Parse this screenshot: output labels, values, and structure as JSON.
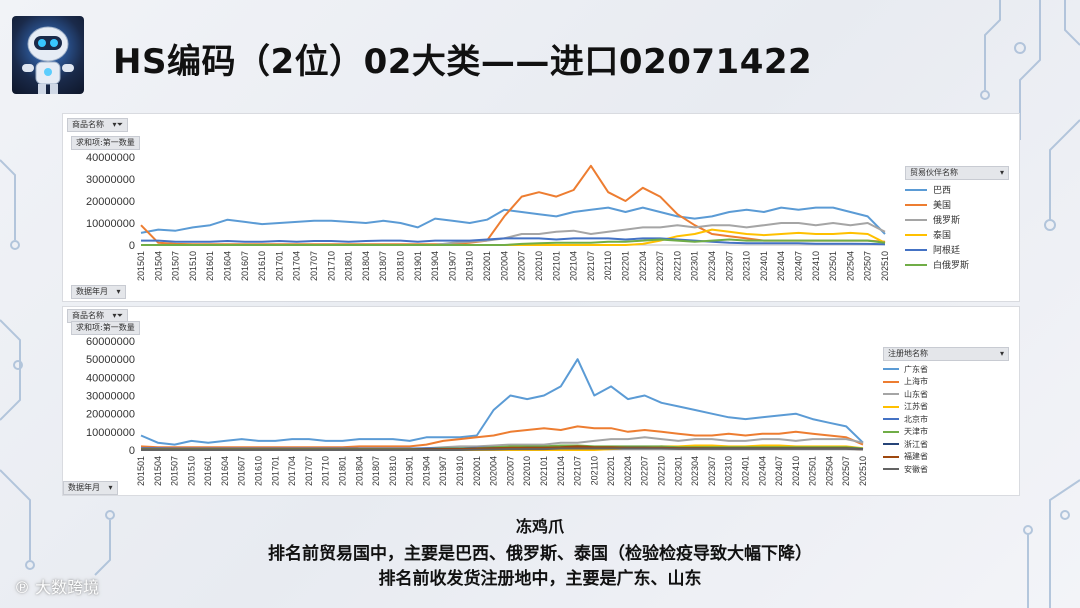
{
  "title": "HS编码（2位）02大类——进口02071422",
  "caption": {
    "line1": "冻鸡爪",
    "line2": "排名前贸易国中，主要是巴西、俄罗斯、泰国（检验检疫导致大幅下降）",
    "line3": "排名前收发货注册地中，主要是广东、山东"
  },
  "watermark": "大数跨境",
  "panel1": {
    "filter_label": "商品名称",
    "measure_label": "求和项:第一数量",
    "axis_field_label": "数据年月",
    "legend_title": "贸易伙伴名称"
  },
  "panel2": {
    "filter_label": "商品名称",
    "measure_label": "求和项:第一数量",
    "axis_field_label": "数据年月",
    "legend_title": "注册地名称"
  },
  "chart_data": [
    {
      "type": "line",
      "ylim": [
        0,
        40000000
      ],
      "yticks": [
        "40000000",
        "30000000",
        "20000000",
        "10000000",
        "0"
      ],
      "x_labels": [
        "201501",
        "201504",
        "201507",
        "201510",
        "201601",
        "201604",
        "201607",
        "201610",
        "201701",
        "201704",
        "201707",
        "201710",
        "201801",
        "201804",
        "201807",
        "201810",
        "201901",
        "201904",
        "201907",
        "201910",
        "202001",
        "202004",
        "202007",
        "202010",
        "202101",
        "202104",
        "202107",
        "202110",
        "202201",
        "202204",
        "202207",
        "202210",
        "202301",
        "202304",
        "202307",
        "202310",
        "202401",
        "202404",
        "202407",
        "202410",
        "202501",
        "202504",
        "202507",
        "202510"
      ],
      "series": [
        {
          "name": "巴西",
          "color": "#5b9bd5",
          "values": [
            5500000,
            7000000,
            6500000,
            8000000,
            9000000,
            11500000,
            10500000,
            9500000,
            10000000,
            10500000,
            11000000,
            11000000,
            10500000,
            10000000,
            11000000,
            10000000,
            8000000,
            12000000,
            11000000,
            10000000,
            11500000,
            16000000,
            15000000,
            14000000,
            13000000,
            15000000,
            16000000,
            17000000,
            15000000,
            17000000,
            15000000,
            13000000,
            12000000,
            13000000,
            15000000,
            16000000,
            15000000,
            17000000,
            16000000,
            17000000,
            17000000,
            15000000,
            13000000,
            5000000
          ]
        },
        {
          "name": "美国",
          "color": "#ed7d31",
          "values": [
            9000000,
            1000000,
            500000,
            300000,
            300000,
            300000,
            300000,
            300000,
            300000,
            300000,
            300000,
            300000,
            300000,
            300000,
            300000,
            300000,
            300000,
            300000,
            500000,
            1000000,
            2000000,
            13000000,
            22000000,
            24000000,
            22000000,
            25000000,
            36000000,
            24000000,
            20000000,
            26000000,
            22000000,
            14000000,
            9000000,
            5000000,
            4000000,
            3000000,
            2000000,
            2000000,
            2000000,
            2000000,
            2000000,
            2000000,
            2000000,
            1500000
          ]
        },
        {
          "name": "俄罗斯",
          "color": "#a5a5a5",
          "values": [
            0,
            0,
            0,
            0,
            0,
            0,
            0,
            0,
            0,
            0,
            0,
            0,
            0,
            0,
            0,
            0,
            0,
            0,
            1000000,
            1500000,
            2000000,
            3000000,
            5000000,
            5000000,
            6000000,
            6500000,
            5000000,
            6000000,
            7000000,
            8000000,
            8000000,
            9000000,
            8000000,
            9000000,
            9000000,
            8000000,
            9000000,
            10000000,
            10000000,
            9000000,
            10000000,
            9000000,
            10000000,
            6000000
          ]
        },
        {
          "name": "泰国",
          "color": "#ffc000",
          "values": [
            0,
            0,
            0,
            0,
            0,
            0,
            0,
            0,
            0,
            0,
            0,
            0,
            0,
            0,
            0,
            0,
            0,
            0,
            0,
            0,
            0,
            0,
            0,
            0,
            0,
            0,
            0,
            0,
            0,
            500000,
            2000000,
            4000000,
            5000000,
            7000000,
            6000000,
            5000000,
            4500000,
            5000000,
            5500000,
            5000000,
            5000000,
            5500000,
            5000000,
            1000000
          ]
        },
        {
          "name": "阿根廷",
          "color": "#4472c4",
          "values": [
            2000000,
            2000000,
            1500000,
            1500000,
            1500000,
            1800000,
            1500000,
            1500000,
            1800000,
            1500000,
            1800000,
            1800000,
            1500000,
            1800000,
            2000000,
            2000000,
            1500000,
            2000000,
            2000000,
            2000000,
            2500000,
            3000000,
            3000000,
            3000000,
            2500000,
            3000000,
            3000000,
            3000000,
            2500000,
            3000000,
            3000000,
            2500000,
            2000000,
            1500000,
            1000000,
            800000,
            800000,
            800000,
            800000,
            600000,
            600000,
            600000,
            500000,
            300000
          ]
        },
        {
          "name": "白俄罗斯",
          "color": "#70ad47",
          "values": [
            0,
            0,
            0,
            0,
            0,
            0,
            0,
            0,
            0,
            0,
            0,
            0,
            0,
            0,
            0,
            0,
            0,
            0,
            0,
            0,
            0,
            0,
            500000,
            800000,
            1000000,
            1000000,
            1000000,
            1500000,
            1500000,
            2000000,
            2500000,
            2000000,
            1500000,
            2000000,
            2500000,
            2000000,
            2000000,
            2000000,
            2000000,
            2000000,
            2000000,
            2000000,
            2000000,
            1000000
          ]
        }
      ]
    },
    {
      "type": "line",
      "ylim": [
        0,
        60000000
      ],
      "yticks": [
        "60000000",
        "50000000",
        "40000000",
        "30000000",
        "20000000",
        "10000000",
        "0"
      ],
      "x_labels": [
        "201501",
        "201504",
        "201507",
        "201510",
        "201601",
        "201604",
        "201607",
        "201610",
        "201701",
        "201704",
        "201707",
        "201710",
        "201801",
        "201804",
        "201807",
        "201810",
        "201901",
        "201904",
        "201907",
        "201910",
        "202001",
        "202004",
        "202007",
        "202010",
        "202101",
        "202104",
        "202107",
        "202110",
        "202201",
        "202204",
        "202207",
        "202210",
        "202301",
        "202304",
        "202307",
        "202310",
        "202401",
        "202404",
        "202407",
        "202410",
        "202501",
        "202504",
        "202507",
        "202510"
      ],
      "series": [
        {
          "name": "广东省",
          "color": "#5b9bd5",
          "values": [
            8000000,
            4000000,
            3000000,
            5000000,
            4000000,
            5000000,
            6000000,
            5000000,
            5000000,
            6000000,
            6000000,
            5000000,
            5000000,
            6000000,
            6000000,
            6000000,
            5000000,
            7000000,
            7000000,
            7000000,
            8000000,
            22000000,
            30000000,
            28000000,
            30000000,
            35000000,
            50000000,
            30000000,
            35000000,
            28000000,
            30000000,
            26000000,
            24000000,
            22000000,
            20000000,
            18000000,
            17000000,
            18000000,
            19000000,
            20000000,
            17000000,
            15000000,
            13000000,
            4000000
          ]
        },
        {
          "name": "上海市",
          "color": "#ed7d31",
          "values": [
            2000000,
            1500000,
            1500000,
            1500000,
            1500000,
            1500000,
            1500000,
            1500000,
            1500000,
            1500000,
            1500000,
            1500000,
            1500000,
            2000000,
            2000000,
            2000000,
            2000000,
            3000000,
            5000000,
            6000000,
            7000000,
            8000000,
            10000000,
            11000000,
            12000000,
            11000000,
            13000000,
            12000000,
            12000000,
            10000000,
            11000000,
            10000000,
            9000000,
            8000000,
            8000000,
            9000000,
            8000000,
            9000000,
            9000000,
            10000000,
            9000000,
            8000000,
            7000000,
            3000000
          ]
        },
        {
          "name": "山东省",
          "color": "#a5a5a5",
          "values": [
            0,
            0,
            0,
            0,
            0,
            0,
            0,
            0,
            0,
            0,
            0,
            0,
            0,
            0,
            0,
            0,
            500000,
            1000000,
            1500000,
            2000000,
            2000000,
            2500000,
            3000000,
            3000000,
            3000000,
            4000000,
            4000000,
            5000000,
            6000000,
            6000000,
            7000000,
            6000000,
            5000000,
            6000000,
            6000000,
            5000000,
            5000000,
            6000000,
            6000000,
            5000000,
            6000000,
            6000000,
            6000000,
            4000000
          ]
        },
        {
          "name": "江苏省",
          "color": "#ffc000",
          "values": [
            0,
            0,
            0,
            0,
            0,
            0,
            0,
            0,
            0,
            0,
            0,
            0,
            0,
            0,
            0,
            0,
            0,
            0,
            0,
            0,
            0,
            0,
            0,
            0,
            0,
            0,
            0,
            0,
            500000,
            1000000,
            1500000,
            2000000,
            2000000,
            2500000,
            2500000,
            2000000,
            2000000,
            2500000,
            2500000,
            2000000,
            2000000,
            2000000,
            2000000,
            1000000
          ]
        },
        {
          "name": "北京市",
          "color": "#4472c4",
          "values": [
            1000000,
            1000000,
            800000,
            800000,
            800000,
            800000,
            800000,
            800000,
            800000,
            800000,
            800000,
            800000,
            800000,
            800000,
            800000,
            800000,
            800000,
            1000000,
            1000000,
            1000000,
            1200000,
            1500000,
            1500000,
            1500000,
            1500000,
            1500000,
            1500000,
            1500000,
            1500000,
            1500000,
            1500000,
            1500000,
            1000000,
            1000000,
            1000000,
            1000000,
            1000000,
            1000000,
            1000000,
            1000000,
            1000000,
            1000000,
            1000000,
            500000
          ]
        },
        {
          "name": "天津市",
          "color": "#70ad47",
          "values": [
            500000,
            500000,
            500000,
            500000,
            500000,
            500000,
            500000,
            500000,
            500000,
            500000,
            500000,
            500000,
            500000,
            500000,
            500000,
            500000,
            500000,
            500000,
            800000,
            800000,
            1000000,
            1500000,
            2000000,
            2000000,
            2000000,
            2500000,
            2500000,
            2000000,
            2000000,
            2000000,
            2000000,
            2000000,
            1500000,
            1500000,
            1500000,
            1500000,
            1500000,
            1500000,
            1500000,
            1500000,
            1500000,
            1500000,
            1500000,
            800000
          ]
        },
        {
          "name": "浙江省",
          "color": "#264478",
          "values": [
            300000,
            300000,
            300000,
            300000,
            300000,
            300000,
            300000,
            300000,
            300000,
            300000,
            300000,
            300000,
            300000,
            300000,
            300000,
            300000,
            300000,
            500000,
            500000,
            500000,
            800000,
            1000000,
            1000000,
            1200000,
            1200000,
            1200000,
            1500000,
            1200000,
            1200000,
            1200000,
            1200000,
            1000000,
            1000000,
            1000000,
            1000000,
            1000000,
            1000000,
            1000000,
            1000000,
            1000000,
            1000000,
            1000000,
            1000000,
            500000
          ]
        },
        {
          "name": "福建省",
          "color": "#9e480e",
          "values": [
            200000,
            200000,
            200000,
            200000,
            200000,
            200000,
            200000,
            200000,
            200000,
            200000,
            200000,
            200000,
            200000,
            200000,
            200000,
            200000,
            200000,
            300000,
            500000,
            500000,
            800000,
            1000000,
            1200000,
            1200000,
            1200000,
            1500000,
            2000000,
            1500000,
            1500000,
            1200000,
            1200000,
            1200000,
            1000000,
            1000000,
            800000,
            800000,
            800000,
            800000,
            800000,
            800000,
            800000,
            800000,
            800000,
            300000
          ]
        },
        {
          "name": "安徽省",
          "color": "#636363",
          "values": [
            0,
            0,
            0,
            0,
            0,
            0,
            0,
            0,
            0,
            0,
            0,
            0,
            0,
            0,
            0,
            0,
            0,
            0,
            0,
            0,
            200000,
            300000,
            500000,
            500000,
            500000,
            800000,
            800000,
            800000,
            800000,
            800000,
            800000,
            800000,
            600000,
            600000,
            600000,
            600000,
            600000,
            600000,
            600000,
            600000,
            600000,
            600000,
            600000,
            300000
          ]
        }
      ]
    }
  ]
}
